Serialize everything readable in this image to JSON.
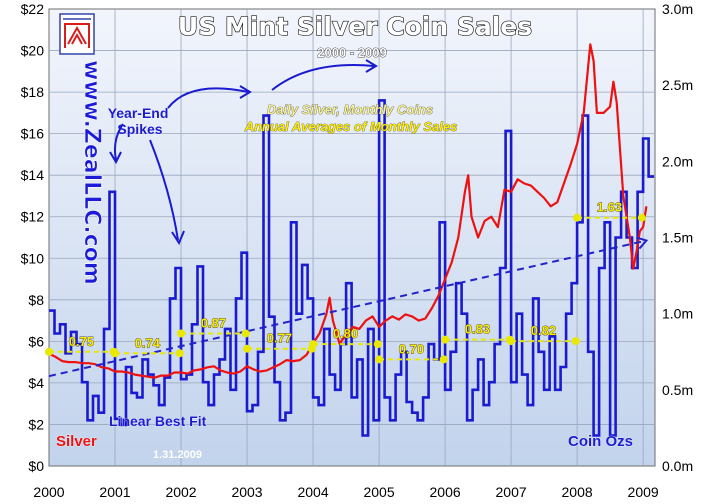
{
  "chart_data": {
    "type": "line",
    "title": "US Mint Silver Coin Sales",
    "subtitle": "2000 - 2009",
    "watermark": "www.ZealLLC.com",
    "legend_lines": [
      "Daily Silver, Monthly Coins",
      "Annual Averages of Monthly Sales"
    ],
    "annotations": {
      "spikes": "Year-End\nSpikes",
      "best_fit": "Linear Best Fit",
      "silver": "Silver",
      "coin": "Coin Ozs",
      "date": "1.31.2009"
    },
    "x_tick_labels": [
      "2000",
      "2001",
      "2002",
      "2003",
      "2004",
      "2005",
      "2006",
      "2007",
      "2008",
      "2009"
    ],
    "left_axis": {
      "min": 0,
      "max": 22,
      "ticks": [
        "$0",
        "$2",
        "$4",
        "$6",
        "$8",
        "$10",
        "$12",
        "$14",
        "$16",
        "$18",
        "$20",
        "$22"
      ]
    },
    "right_axis": {
      "min": 0,
      "max": 3.0,
      "ticks": [
        "0.0m",
        "0.5m",
        "1.0m",
        "1.5m",
        "2.0m",
        "2.5m",
        "3.0m"
      ]
    },
    "colors": {
      "silver": "#ee1111",
      "coins": "#1a1ad0",
      "average": "#e8e800",
      "trend": "#2222cc",
      "background_top": "#eef2fb",
      "background_bottom": "#c6d6ee"
    },
    "grid": true,
    "series": [
      {
        "name": "Silver",
        "axis": "left",
        "points": [
          [
            2000.0,
            5.4
          ],
          [
            2000.1,
            5.25
          ],
          [
            2000.2,
            5.05
          ],
          [
            2000.3,
            5.0
          ],
          [
            2000.4,
            5.0
          ],
          [
            2000.5,
            4.95
          ],
          [
            2000.6,
            4.95
          ],
          [
            2000.7,
            4.9
          ],
          [
            2000.8,
            4.75
          ],
          [
            2000.9,
            4.7
          ],
          [
            2001.0,
            4.55
          ],
          [
            2001.1,
            4.55
          ],
          [
            2001.2,
            4.5
          ],
          [
            2001.3,
            4.4
          ],
          [
            2001.4,
            4.35
          ],
          [
            2001.5,
            4.3
          ],
          [
            2001.6,
            4.25
          ],
          [
            2001.7,
            4.35
          ],
          [
            2001.8,
            4.35
          ],
          [
            2001.9,
            4.5
          ],
          [
            2002.0,
            4.5
          ],
          [
            2002.1,
            4.45
          ],
          [
            2002.2,
            4.6
          ],
          [
            2002.3,
            4.65
          ],
          [
            2002.4,
            4.75
          ],
          [
            2002.5,
            4.8
          ],
          [
            2002.6,
            4.6
          ],
          [
            2002.7,
            4.5
          ],
          [
            2002.8,
            4.45
          ],
          [
            2002.9,
            4.55
          ],
          [
            2003.0,
            4.8
          ],
          [
            2003.1,
            4.65
          ],
          [
            2003.2,
            4.55
          ],
          [
            2003.3,
            4.6
          ],
          [
            2003.4,
            4.75
          ],
          [
            2003.5,
            4.9
          ],
          [
            2003.6,
            5.1
          ],
          [
            2003.7,
            5.05
          ],
          [
            2003.8,
            5.1
          ],
          [
            2003.9,
            5.35
          ],
          [
            2004.0,
            5.9
          ],
          [
            2004.1,
            6.4
          ],
          [
            2004.2,
            7.3
          ],
          [
            2004.25,
            8.1
          ],
          [
            2004.3,
            7.0
          ],
          [
            2004.4,
            5.9
          ],
          [
            2004.5,
            6.3
          ],
          [
            2004.6,
            6.7
          ],
          [
            2004.7,
            6.6
          ],
          [
            2004.8,
            7.0
          ],
          [
            2004.9,
            7.2
          ],
          [
            2005.0,
            6.7
          ],
          [
            2005.1,
            7.0
          ],
          [
            2005.2,
            7.2
          ],
          [
            2005.3,
            7.05
          ],
          [
            2005.4,
            7.3
          ],
          [
            2005.5,
            7.2
          ],
          [
            2005.6,
            7.0
          ],
          [
            2005.7,
            7.1
          ],
          [
            2005.8,
            7.6
          ],
          [
            2005.9,
            8.2
          ],
          [
            2006.0,
            9.0
          ],
          [
            2006.1,
            9.8
          ],
          [
            2006.2,
            11.0
          ],
          [
            2006.3,
            13.2
          ],
          [
            2006.35,
            14.0
          ],
          [
            2006.4,
            12.0
          ],
          [
            2006.5,
            11.0
          ],
          [
            2006.6,
            11.8
          ],
          [
            2006.7,
            12.0
          ],
          [
            2006.8,
            11.5
          ],
          [
            2006.9,
            13.3
          ],
          [
            2007.0,
            13.2
          ],
          [
            2007.1,
            13.8
          ],
          [
            2007.2,
            13.6
          ],
          [
            2007.3,
            13.5
          ],
          [
            2007.4,
            13.2
          ],
          [
            2007.5,
            12.9
          ],
          [
            2007.6,
            12.5
          ],
          [
            2007.7,
            12.7
          ],
          [
            2007.8,
            13.6
          ],
          [
            2007.9,
            14.5
          ],
          [
            2008.0,
            15.5
          ],
          [
            2008.1,
            17.0
          ],
          [
            2008.2,
            20.3
          ],
          [
            2008.25,
            19.5
          ],
          [
            2008.3,
            17.0
          ],
          [
            2008.4,
            17.0
          ],
          [
            2008.5,
            17.3
          ],
          [
            2008.55,
            18.5
          ],
          [
            2008.6,
            17.5
          ],
          [
            2008.7,
            13.0
          ],
          [
            2008.8,
            11.0
          ],
          [
            2008.85,
            9.5
          ],
          [
            2008.9,
            10.3
          ],
          [
            2008.95,
            11.3
          ],
          [
            2009.0,
            11.5
          ],
          [
            2009.05,
            12.5
          ]
        ]
      },
      {
        "name": "Coin Ozs",
        "axis": "right",
        "monthly_values": [
          1.02,
          0.87,
          0.93,
          0.74,
          0.88,
          0.8,
          0.55,
          0.3,
          0.46,
          0.35,
          0.9,
          1.8,
          0.31,
          0.27,
          0.65,
          0.48,
          0.45,
          0.7,
          0.6,
          0.53,
          0.4,
          0.58,
          1.1,
          1.3,
          0.57,
          0.6,
          0.93,
          1.31,
          0.55,
          0.4,
          0.6,
          0.7,
          0.9,
          0.5,
          1.1,
          1.4,
          0.36,
          0.4,
          0.75,
          2.3,
          0.98,
          0.55,
          0.3,
          0.35,
          1.6,
          1.0,
          1.32,
          1.1,
          0.45,
          0.4,
          0.9,
          0.6,
          0.5,
          0.8,
          1.2,
          0.45,
          0.7,
          0.2,
          0.9,
          0.3,
          2.4,
          0.45,
          0.3,
          0.6,
          0.75,
          0.42,
          0.35,
          0.3,
          0.45,
          0.8,
          0.7,
          1.6,
          0.5,
          0.75,
          1.2,
          1.0,
          0.3,
          0.5,
          0.7,
          0.4,
          0.55,
          0.8,
          1.3,
          2.2,
          0.55,
          1.0,
          0.6,
          0.4,
          1.1,
          0.75,
          0.5,
          0.85,
          0.5,
          0.65,
          1.0,
          1.2,
          1.6,
          2.3,
          0.75,
          0.2,
          1.3,
          1.6,
          0.2,
          1.5,
          1.8,
          1.5,
          1.3,
          1.8,
          2.15,
          1.9
        ]
      },
      {
        "name": "Annual Averages of Monthly Sales",
        "axis": "right",
        "values": [
          0.75,
          0.74,
          0.87,
          0.77,
          0.8,
          0.7,
          0.83,
          0.82,
          1.63
        ],
        "years": [
          2000,
          2001,
          2002,
          2003,
          2004,
          2005,
          2006,
          2007,
          2008
        ]
      },
      {
        "name": "Linear Best Fit",
        "axis": "right",
        "start": [
          2000.0,
          0.59
        ],
        "end": [
          2009.05,
          1.48
        ]
      }
    ]
  }
}
